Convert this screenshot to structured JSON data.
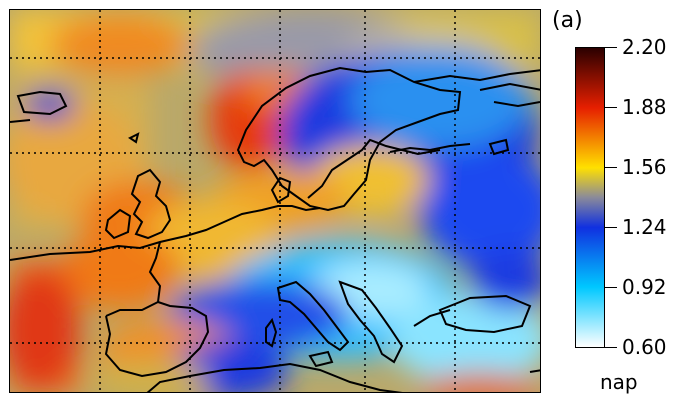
{
  "figure": {
    "panel_label": "(a)",
    "colorbar": {
      "units_label": "nap",
      "ticks": [
        "2.20",
        "1.88",
        "1.56",
        "1.24",
        "0.92",
        "0.60"
      ],
      "range": [
        0.6,
        2.2
      ],
      "colors": {
        "2.20": "#2b0000",
        "1.88": "#e61f00",
        "1.56": "#ffe000",
        "1.40": "#8a8a9a",
        "1.24": "#1030e0",
        "0.92": "#00c8ff",
        "0.60": "#ffffff"
      }
    },
    "map": {
      "region": "Europe",
      "gridlines": "dotted"
    }
  }
}
